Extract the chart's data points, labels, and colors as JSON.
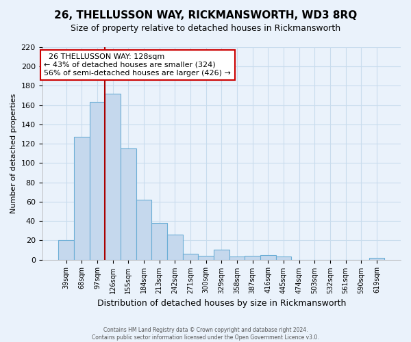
{
  "title": "26, THELLUSSON WAY, RICKMANSWORTH, WD3 8RQ",
  "subtitle": "Size of property relative to detached houses in Rickmansworth",
  "xlabel": "Distribution of detached houses by size in Rickmansworth",
  "ylabel": "Number of detached properties",
  "bar_labels": [
    "39sqm",
    "68sqm",
    "97sqm",
    "126sqm",
    "155sqm",
    "184sqm",
    "213sqm",
    "242sqm",
    "271sqm",
    "300sqm",
    "329sqm",
    "358sqm",
    "387sqm",
    "416sqm",
    "445sqm",
    "474sqm",
    "503sqm",
    "532sqm",
    "561sqm",
    "590sqm",
    "619sqm"
  ],
  "bar_values": [
    20,
    127,
    163,
    172,
    115,
    62,
    38,
    26,
    6,
    4,
    10,
    3,
    4,
    5,
    3,
    0,
    0,
    0,
    0,
    0,
    2
  ],
  "bar_color": "#c5d8ed",
  "bar_edge_color": "#6baed6",
  "vline_x": 3,
  "vline_color": "#aa0000",
  "annotation_title": "26 THELLUSSON WAY: 128sqm",
  "annotation_line1": "← 43% of detached houses are smaller (324)",
  "annotation_line2": "56% of semi-detached houses are larger (426) →",
  "annotation_box_color": "#ffffff",
  "annotation_box_edge": "#cc0000",
  "ylim": [
    0,
    220
  ],
  "yticks": [
    0,
    20,
    40,
    60,
    80,
    100,
    120,
    140,
    160,
    180,
    200,
    220
  ],
  "footer1": "Contains HM Land Registry data © Crown copyright and database right 2024.",
  "footer2": "Contains public sector information licensed under the Open Government Licence v3.0.",
  "bg_color": "#eaf2fb",
  "grid_color": "#c8dced"
}
